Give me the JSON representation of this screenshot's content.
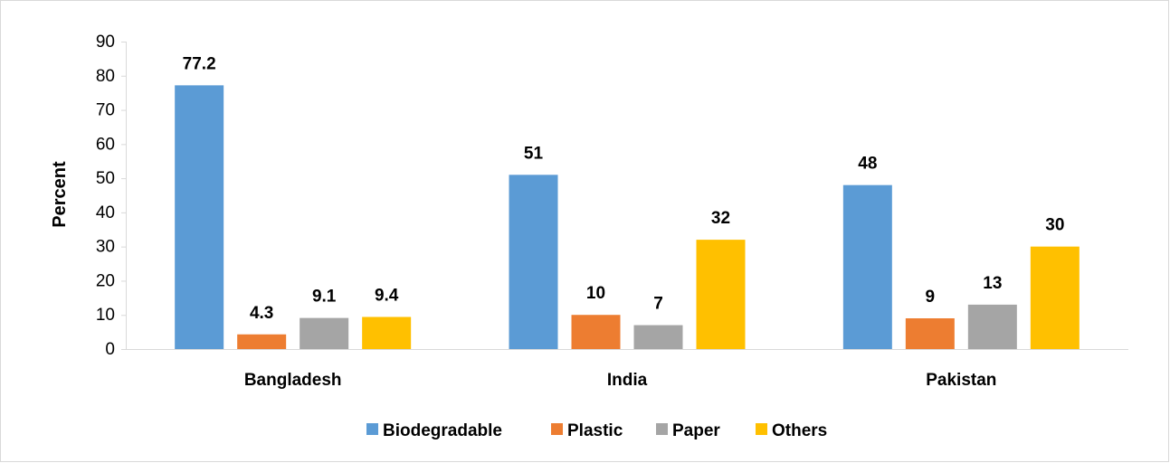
{
  "chart_data": {
    "type": "bar",
    "title": "",
    "xlabel": "",
    "ylabel": "Percent",
    "ylim": [
      0,
      90
    ],
    "yticks": [
      0,
      10,
      20,
      30,
      40,
      50,
      60,
      70,
      80,
      90
    ],
    "grid": false,
    "legend_position": "bottom",
    "categories": [
      "Bangladesh",
      "India",
      "Pakistan"
    ],
    "series": [
      {
        "name": "Biodegradable",
        "color": "#5b9bd5",
        "values": [
          77.2,
          51,
          48
        ],
        "labels": [
          "77.2",
          "51",
          "48"
        ]
      },
      {
        "name": "Plastic",
        "color": "#ed7d31",
        "values": [
          4.3,
          10,
          9
        ],
        "labels": [
          "4.3",
          "10",
          "9"
        ]
      },
      {
        "name": "Paper",
        "color": "#a5a5a5",
        "values": [
          9.1,
          7,
          13
        ],
        "labels": [
          "9.1",
          "7",
          "13"
        ]
      },
      {
        "name": "Others",
        "color": "#ffc000",
        "values": [
          9.4,
          32,
          30
        ],
        "labels": [
          "9.4",
          "32",
          "30"
        ]
      }
    ]
  }
}
